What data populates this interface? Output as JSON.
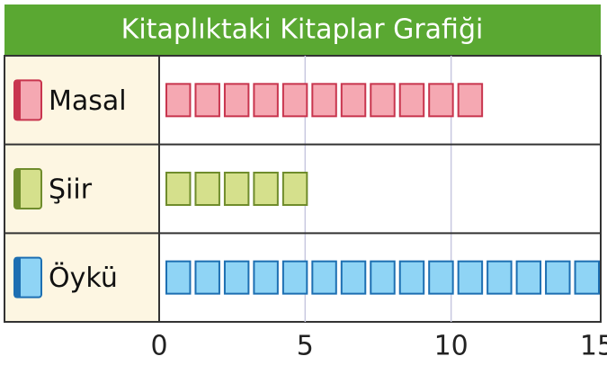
{
  "chart_data": {
    "type": "bar",
    "title": "Kitaplıktaki Kitaplar Grafiği",
    "categories": [
      "Masal",
      "Şiir",
      "Öykü"
    ],
    "values": [
      11,
      5,
      15
    ],
    "colors": [
      "#f5a8b2",
      "#d5e08c",
      "#8fd4f5"
    ],
    "xlim": [
      0,
      15
    ],
    "xticks": [
      0,
      5,
      10,
      15
    ],
    "grid": true
  }
}
